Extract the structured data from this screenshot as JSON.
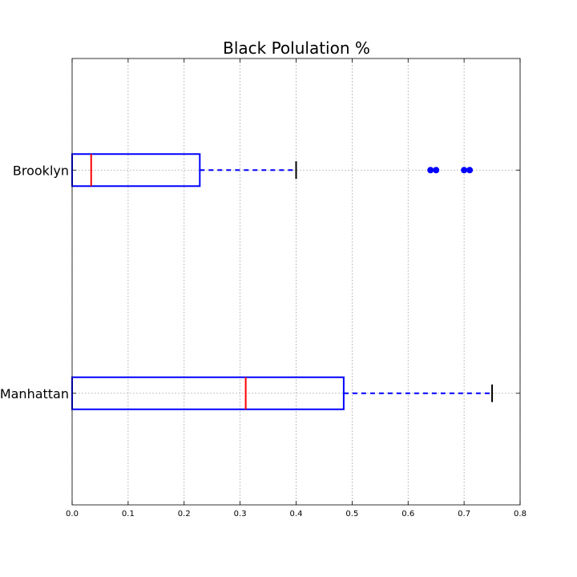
{
  "chart_data": {
    "type": "boxplot",
    "orientation": "horizontal",
    "title": "Black Polulation %",
    "xlabel": "",
    "ylabel": "",
    "xlim": [
      0,
      0.8
    ],
    "xticks": [
      "0.0",
      "0.1",
      "0.2",
      "0.3",
      "0.4",
      "0.5",
      "0.6",
      "0.7",
      "0.8"
    ],
    "grid": true,
    "categories": [
      "Brooklyn",
      "Manhattan"
    ],
    "boxes": [
      {
        "category": "Brooklyn",
        "whisker_low": 0.0,
        "q1": 0.0,
        "median": 0.034,
        "q3": 0.228,
        "whisker_high": 0.4,
        "outliers": [
          0.64,
          0.65,
          0.7,
          0.71
        ]
      },
      {
        "category": "Manhattan",
        "whisker_low": 0.0,
        "q1": 0.0,
        "median": 0.31,
        "q3": 0.485,
        "whisker_high": 0.75,
        "outliers": []
      }
    ],
    "colors": {
      "box": "#0000ff",
      "median": "#ff0000",
      "whisker_cap": "#000000",
      "outlier": "#0000ff",
      "grid": "#b0b0b0"
    }
  }
}
